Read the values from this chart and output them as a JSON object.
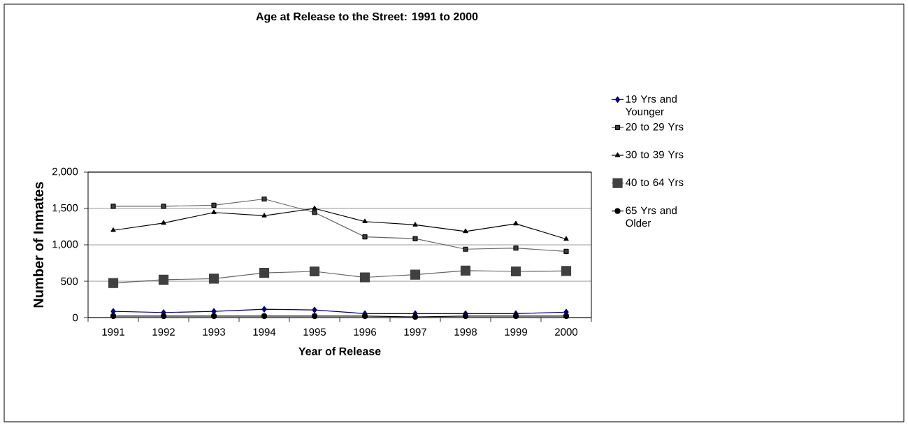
{
  "chart_data": {
    "type": "line",
    "title": "Age at Release to the Street: 1991 to 2000",
    "xlabel": "Year of Release",
    "ylabel": "Number of Inmates",
    "categories": [
      "1991",
      "1992",
      "1993",
      "1994",
      "1995",
      "1996",
      "1997",
      "1998",
      "1999",
      "2000"
    ],
    "series": [
      {
        "name": "19 Yrs and Younger",
        "color": "#000080",
        "marker": "diamond",
        "values": [
          85,
          70,
          85,
          115,
          105,
          55,
          55,
          55,
          55,
          75
        ]
      },
      {
        "name": "20 to 29 Yrs",
        "color": "#404040",
        "marker": "square",
        "values": [
          1530,
          1530,
          1545,
          1630,
          1445,
          1110,
          1085,
          940,
          955,
          910
        ]
      },
      {
        "name": "30 to 39 Yrs",
        "color": "#000000",
        "marker": "triangle",
        "values": [
          1200,
          1300,
          1445,
          1400,
          1500,
          1320,
          1275,
          1185,
          1290,
          1080
        ]
      },
      {
        "name": "40 to 64 Yrs",
        "color": "#404040",
        "marker": "square",
        "values": [
          475,
          520,
          535,
          615,
          635,
          553,
          590,
          645,
          635,
          640
        ]
      },
      {
        "name": "65 Yrs and Older",
        "color": "#000000",
        "marker": "circle",
        "values": [
          20,
          20,
          20,
          20,
          20,
          20,
          10,
          20,
          20,
          20
        ]
      }
    ],
    "ylim": [
      0,
      2000
    ],
    "yticks": [
      0,
      500,
      {
        "value": 1000,
        "label": "1,000"
      },
      {
        "value": 1500,
        "label": "1,500"
      },
      {
        "value": 2000,
        "label": "2,000"
      }
    ],
    "grid": "y",
    "legend": "right",
    "line_style": "solid"
  }
}
